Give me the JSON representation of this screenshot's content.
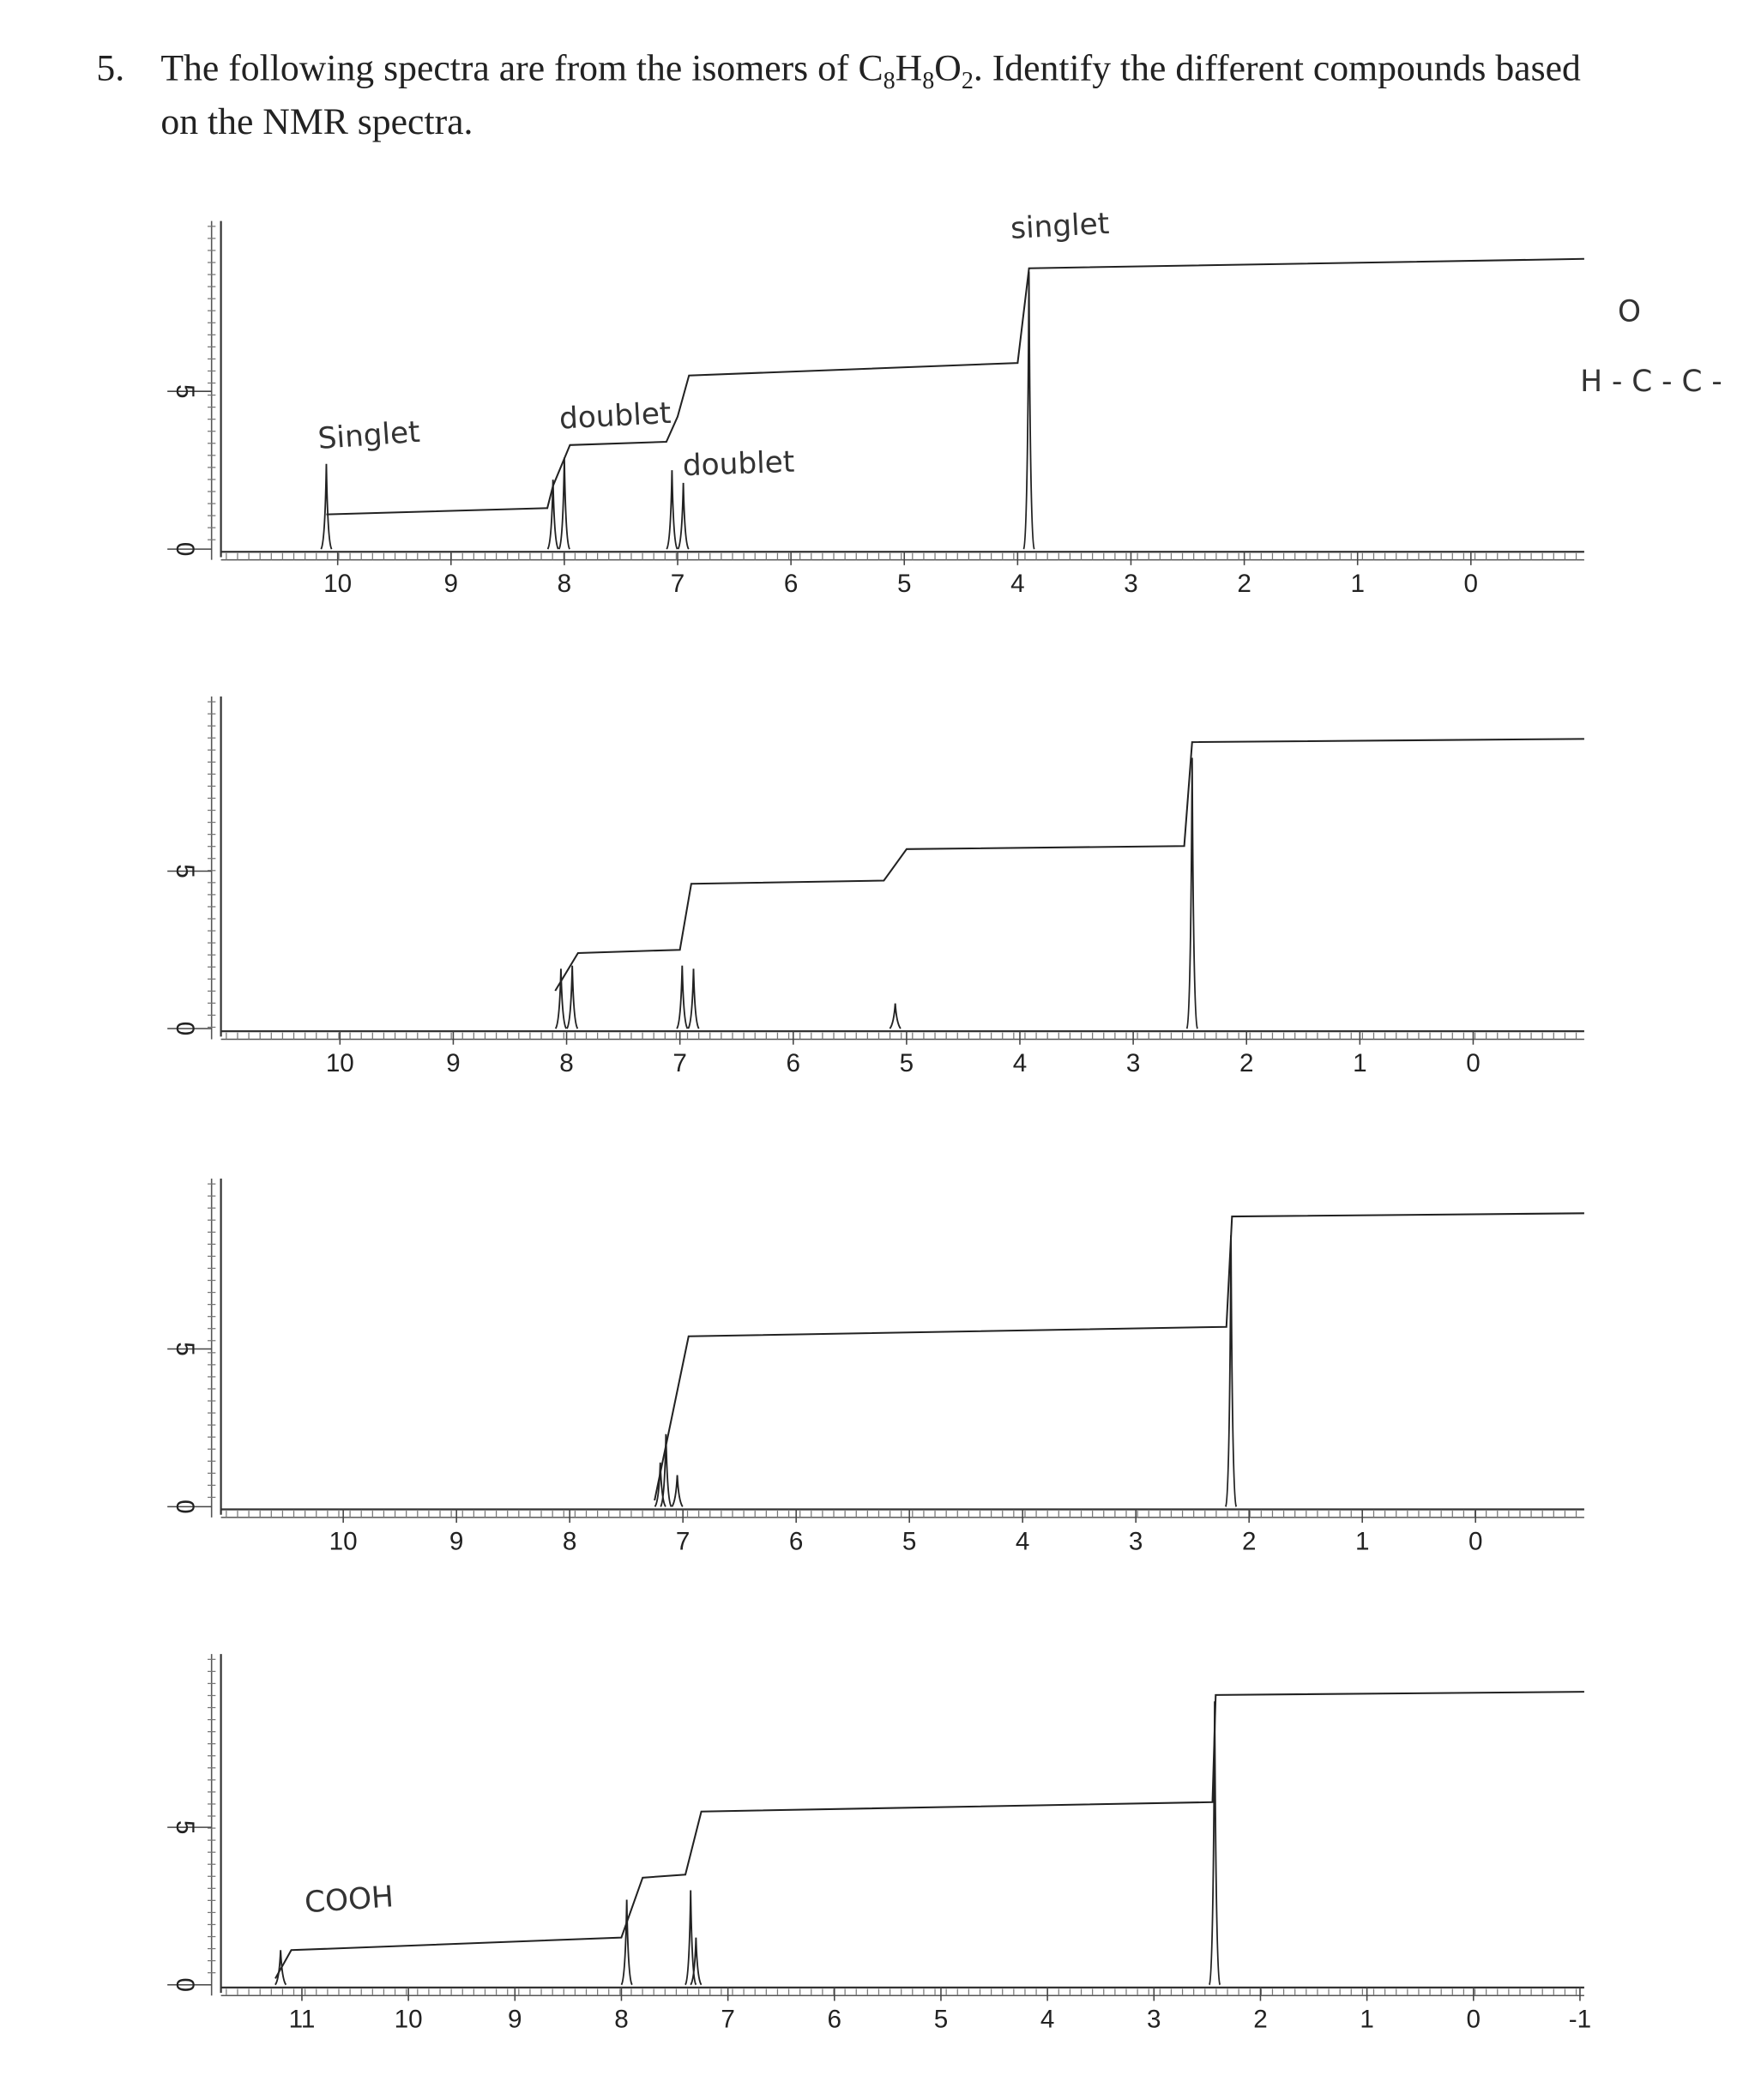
{
  "question": {
    "number": "5.",
    "prefix": "The following spectra are from the isomers of ",
    "formula": [
      "C",
      "8",
      "H",
      "8",
      "O",
      "2"
    ],
    "suffix": ". Identify the different compounds based",
    "line2": "on the NMR spectra."
  },
  "margin_note": [
    "O",
    "H - C - C -"
  ],
  "spectra": [
    {
      "xlim": [
        11.03,
        -1.0
      ],
      "xticks": [
        10,
        9,
        8,
        7,
        6,
        5,
        4,
        3,
        2,
        1,
        0
      ],
      "ylim": [
        0,
        10.4
      ],
      "yticks": [
        0,
        5
      ],
      "peaks": {
        "x": [
          10.1,
          8.1,
          8.0,
          7.05,
          6.95,
          3.9
        ],
        "values": [
          2.7,
          2.2,
          2.9,
          2.5,
          2.1,
          8.8
        ]
      },
      "integral": {
        "x": [
          10.1,
          8.15,
          8.1,
          7.95,
          7.1,
          7.0,
          6.9,
          4.0,
          3.9,
          -1.0
        ],
        "values": [
          1.1,
          1.3,
          2.0,
          3.3,
          3.4,
          4.2,
          5.5,
          5.9,
          8.9,
          9.2
        ]
      },
      "annotations": [
        "Singlet",
        "doublet",
        "doublet",
        "singlet"
      ]
    },
    {
      "xlim": [
        11.05,
        -0.98
      ],
      "xticks": [
        10,
        9,
        8,
        7,
        6,
        5,
        4,
        3,
        2,
        1,
        0
      ],
      "ylim": [
        0,
        10.55
      ],
      "yticks": [
        0,
        5
      ],
      "peaks": {
        "x": [
          8.05,
          7.95,
          6.98,
          6.88,
          5.1,
          2.48
        ],
        "values": [
          1.9,
          2.0,
          2.0,
          1.9,
          0.8,
          8.6
        ]
      },
      "integral": {
        "x": [
          8.1,
          7.9,
          7.0,
          6.9,
          5.2,
          5.0,
          2.55,
          2.48,
          -0.98
        ],
        "values": [
          1.2,
          2.4,
          2.5,
          4.6,
          4.7,
          5.7,
          5.8,
          9.1,
          9.2
        ]
      },
      "annotations": []
    },
    {
      "xlim": [
        11.08,
        -0.96
      ],
      "xticks": [
        10,
        9,
        8,
        7,
        6,
        5,
        4,
        3,
        2,
        1,
        0
      ],
      "ylim": [
        0,
        10.4
      ],
      "yticks": [
        0,
        5
      ],
      "peaks": {
        "x": [
          7.2,
          7.15,
          7.05,
          2.16
        ],
        "values": [
          1.4,
          2.3,
          1.0,
          8.6
        ]
      },
      "integral": {
        "x": [
          7.25,
          6.95,
          2.2,
          2.15,
          -0.96
        ],
        "values": [
          0.2,
          5.4,
          5.7,
          9.2,
          9.3
        ]
      },
      "annotations": []
    },
    {
      "xlim": [
        11.76,
        -1.04
      ],
      "xticks": [
        11,
        10,
        9,
        8,
        7,
        6,
        5,
        4,
        3,
        2,
        1,
        0,
        -1
      ],
      "ylim": [
        0,
        10.5
      ],
      "yticks": [
        0,
        5
      ],
      "peaks": {
        "x": [
          11.2,
          7.95,
          7.35,
          7.3,
          2.43
        ],
        "values": [
          1.1,
          2.7,
          3.0,
          1.5,
          9.0
        ]
      },
      "integral": {
        "x": [
          11.25,
          11.1,
          8.0,
          7.8,
          7.4,
          7.25,
          2.45,
          2.42,
          -1.04
        ],
        "values": [
          0.2,
          1.1,
          1.5,
          3.4,
          3.5,
          5.5,
          5.8,
          9.2,
          9.3
        ]
      },
      "annotations": [
        "COOH"
      ]
    }
  ]
}
